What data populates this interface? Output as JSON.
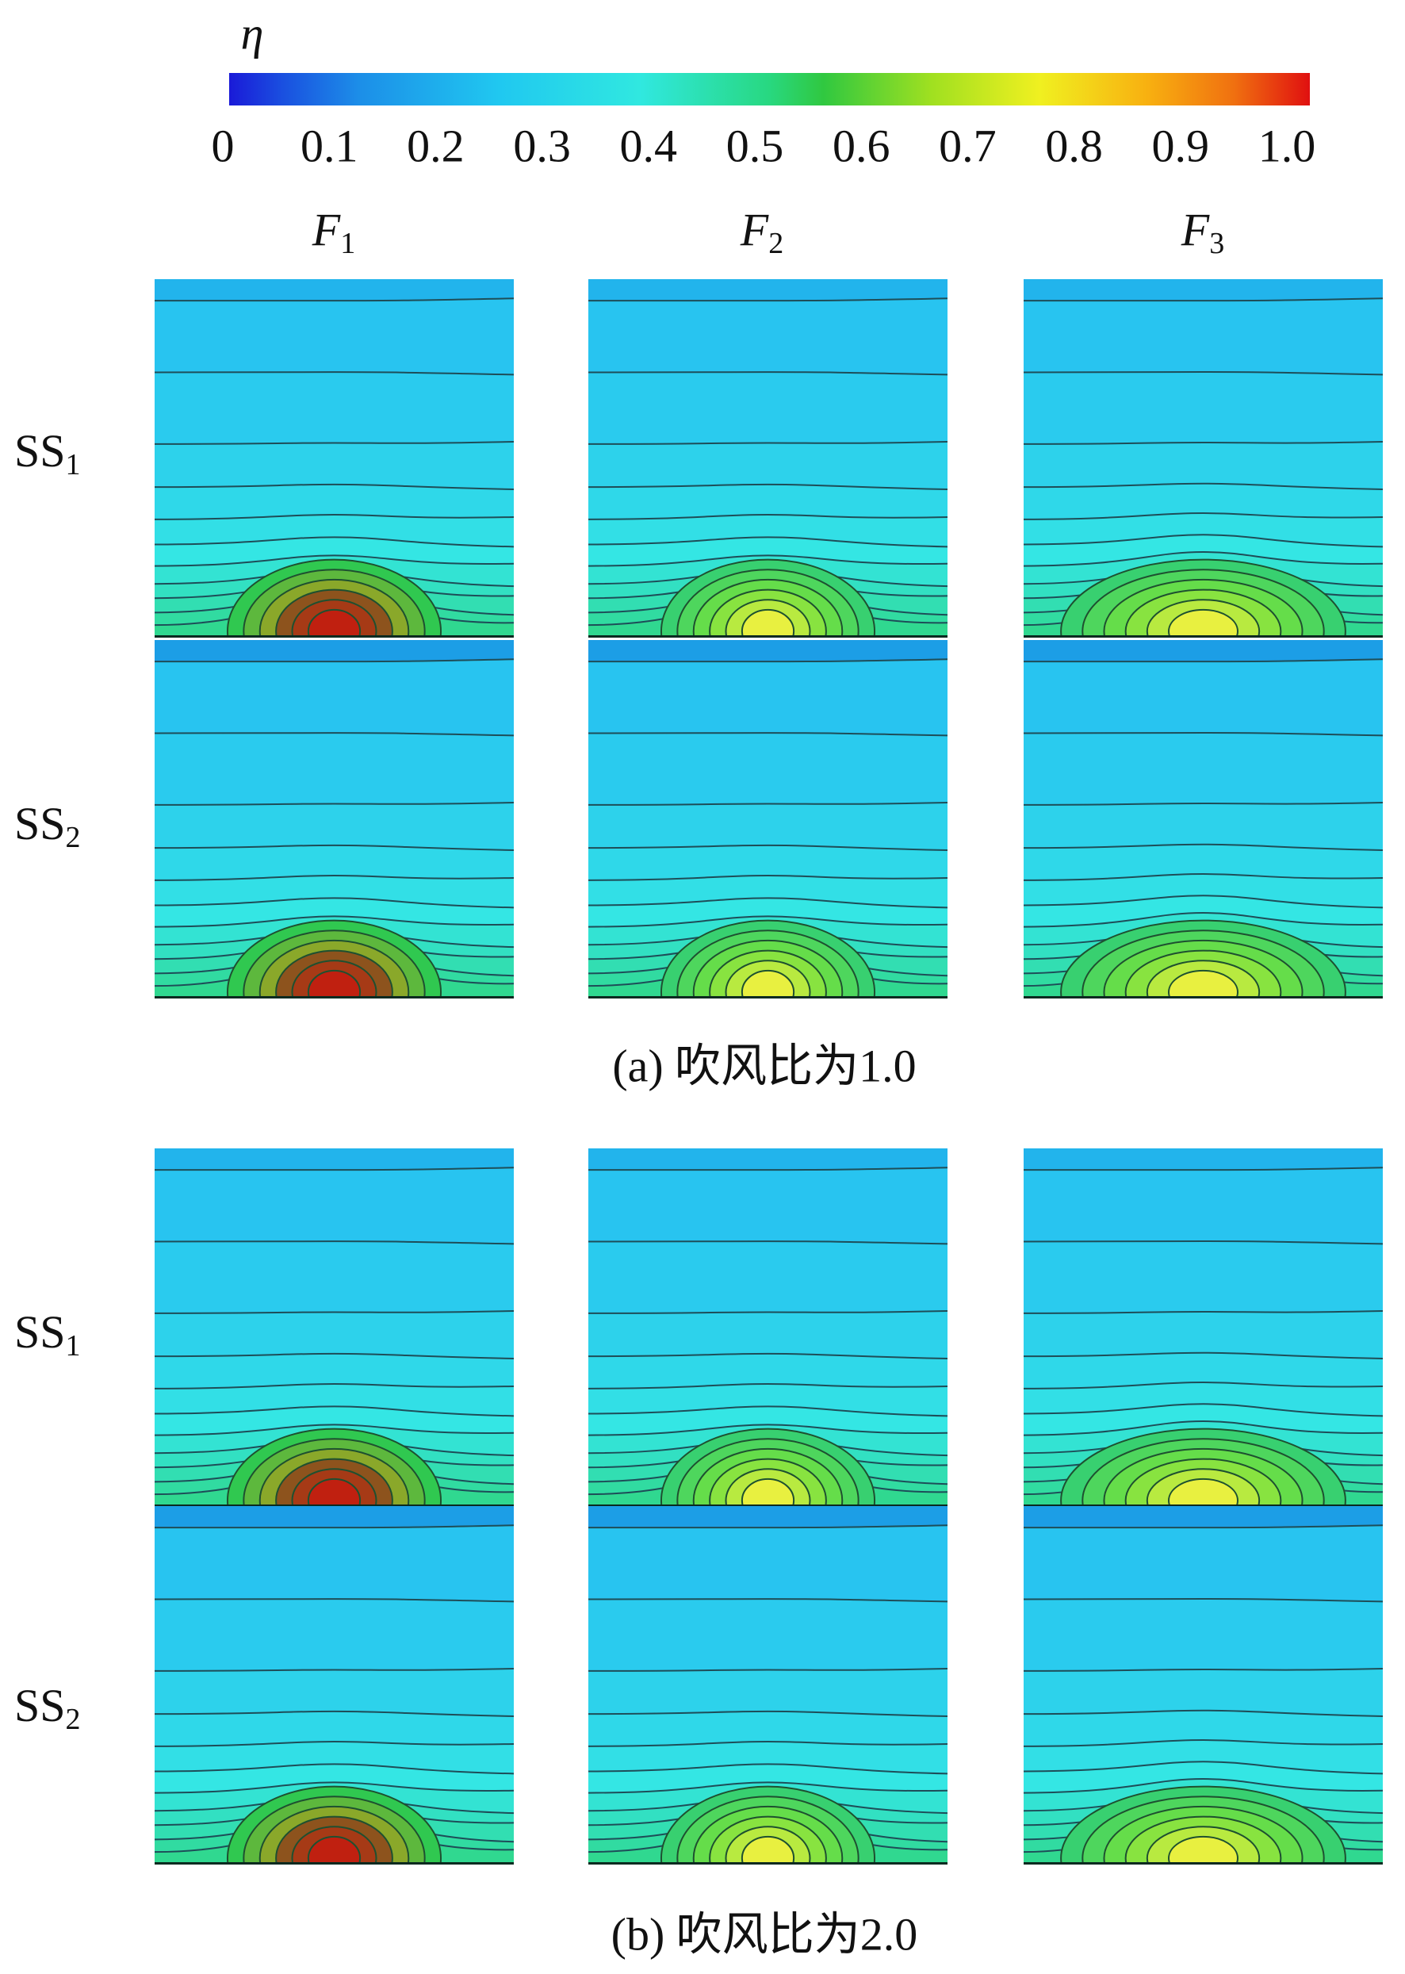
{
  "colorbar": {
    "label": "η",
    "ticks": [
      "0",
      "0.1",
      "0.2",
      "0.3",
      "0.4",
      "0.5",
      "0.6",
      "0.7",
      "0.8",
      "0.9",
      "1.0"
    ]
  },
  "columns": [
    {
      "symbol": "F",
      "subscript": "1"
    },
    {
      "symbol": "F",
      "subscript": "2"
    },
    {
      "symbol": "F",
      "subscript": "3"
    }
  ],
  "groups": [
    {
      "caption": "(a) 吹风比为1.0",
      "rows": [
        {
          "symbol": "SS",
          "subscript": "1"
        },
        {
          "symbol": "SS",
          "subscript": "2"
        }
      ]
    },
    {
      "caption": "(b) 吹风比为2.0",
      "rows": [
        {
          "symbol": "SS",
          "subscript": "1"
        },
        {
          "symbol": "SS",
          "subscript": "2"
        }
      ]
    }
  ]
}
